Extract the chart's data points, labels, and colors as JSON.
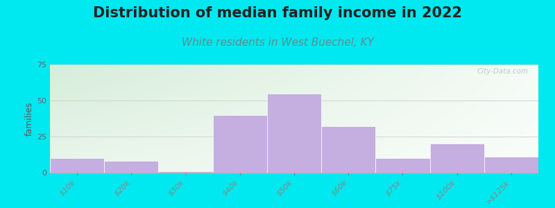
{
  "title": "Distribution of median family income in 2022",
  "subtitle": "White residents in West Buechel, KY",
  "ylabel": "families",
  "categories": [
    "$10k",
    "$20k",
    "$30k",
    "$40k",
    "$50k",
    "$60k",
    "$75k",
    "$100k",
    ">$125k"
  ],
  "values": [
    10,
    8,
    1,
    40,
    55,
    32,
    10,
    20,
    11
  ],
  "bar_color": "#c5aee0",
  "bg_outer": "#00e8f0",
  "bg_grad_left": "#d6edda",
  "bg_grad_right": "#f5fbf5",
  "bg_top": "#eaf5eb",
  "bg_bottom": "#ffffff",
  "grid_color": "#cccccc",
  "title_fontsize": 15,
  "subtitle_fontsize": 11,
  "ylabel_fontsize": 9,
  "tick_fontsize": 8,
  "ylim": [
    0,
    75
  ],
  "yticks": [
    0,
    25,
    50,
    75
  ],
  "title_color": "#222222",
  "subtitle_color": "#5a9090",
  "watermark": "City-Data.com"
}
